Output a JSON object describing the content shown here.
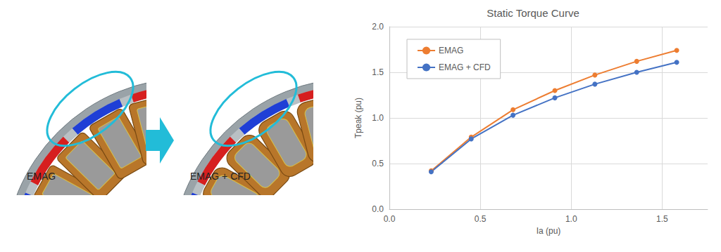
{
  "chart_data": {
    "type": "line",
    "title": "Static Torque Curve",
    "x_label": "Ia (pu)",
    "y_label": "Tpeak (pu)",
    "x": [
      0.23,
      0.45,
      0.68,
      0.91,
      1.13,
      1.36,
      1.58
    ],
    "series": [
      {
        "name": "EMAG",
        "color": "#ed7d31",
        "marker": "circle",
        "line_style": "solid",
        "values": [
          0.42,
          0.79,
          1.09,
          1.3,
          1.47,
          1.62,
          1.74
        ]
      },
      {
        "name": "EMAG + CFD",
        "color": "#4472c4",
        "marker": "circle",
        "line_style": "solid",
        "values": [
          0.41,
          0.77,
          1.03,
          1.22,
          1.37,
          1.5,
          1.61
        ]
      }
    ],
    "xlim": [
      0,
      1.75
    ],
    "xticks": [
      {
        "value": 0,
        "label": "0.0"
      },
      0.5,
      {
        "value": 1,
        "label": "1.0"
      },
      1.5
    ],
    "ylim": [
      0,
      2
    ],
    "yticks": [
      {
        "value": 0,
        "label": "0.0"
      },
      0.5,
      {
        "value": 1,
        "label": "1.0"
      },
      1.5,
      {
        "value": 2,
        "label": "2.0"
      }
    ],
    "grid": true,
    "legend": "upper left"
  },
  "illustration": {
    "panels": [
      "EMAG",
      "EMAG + CFD"
    ]
  }
}
